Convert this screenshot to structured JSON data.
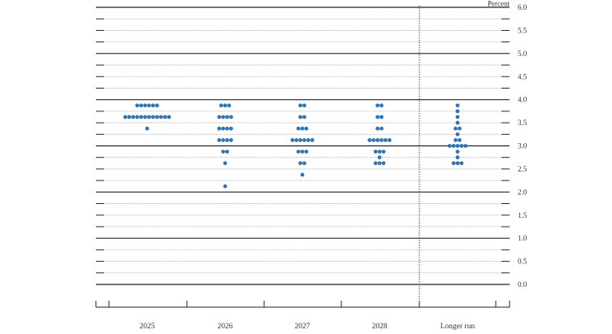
{
  "chart_data": {
    "type": "scatter",
    "title": "",
    "ylabel": "Percent",
    "xlabel": "",
    "ylim": [
      0,
      6
    ],
    "grid": true,
    "y_ticks": [
      "0.0",
      "0.5",
      "1.0",
      "1.5",
      "2.0",
      "2.5",
      "3.0",
      "3.5",
      "4.0",
      "4.5",
      "5.0",
      "5.5",
      "6.0"
    ],
    "dot_color": "#2e75b6",
    "categories": [
      "2025",
      "2026",
      "2027",
      "2028",
      "Longer run"
    ],
    "series": [
      {
        "name": "2025",
        "points": [
          {
            "y": 3.875,
            "count": 6
          },
          {
            "y": 3.625,
            "count": 12
          },
          {
            "y": 3.375,
            "count": 1
          }
        ]
      },
      {
        "name": "2026",
        "points": [
          {
            "y": 3.875,
            "count": 3
          },
          {
            "y": 3.625,
            "count": 4
          },
          {
            "y": 3.375,
            "count": 4
          },
          {
            "y": 3.125,
            "count": 4
          },
          {
            "y": 2.875,
            "count": 2
          },
          {
            "y": 2.625,
            "count": 1
          },
          {
            "y": 2.125,
            "count": 1
          }
        ]
      },
      {
        "name": "2027",
        "points": [
          {
            "y": 3.875,
            "count": 2
          },
          {
            "y": 3.625,
            "count": 2
          },
          {
            "y": 3.375,
            "count": 3
          },
          {
            "y": 3.125,
            "count": 6
          },
          {
            "y": 2.875,
            "count": 3
          },
          {
            "y": 2.625,
            "count": 2
          },
          {
            "y": 2.375,
            "count": 1
          }
        ]
      },
      {
        "name": "2028",
        "points": [
          {
            "y": 3.875,
            "count": 2
          },
          {
            "y": 3.625,
            "count": 2
          },
          {
            "y": 3.375,
            "count": 2
          },
          {
            "y": 3.125,
            "count": 6
          },
          {
            "y": 2.875,
            "count": 3
          },
          {
            "y": 2.75,
            "count": 1
          },
          {
            "y": 2.625,
            "count": 3
          }
        ]
      },
      {
        "name": "Longer run",
        "points": [
          {
            "y": 3.875,
            "count": 1
          },
          {
            "y": 3.75,
            "count": 1
          },
          {
            "y": 3.625,
            "count": 1
          },
          {
            "y": 3.5,
            "count": 1
          },
          {
            "y": 3.375,
            "count": 2
          },
          {
            "y": 3.25,
            "count": 1
          },
          {
            "y": 3.125,
            "count": 2
          },
          {
            "y": 3.0,
            "count": 5
          },
          {
            "y": 2.875,
            "count": 1
          },
          {
            "y": 2.75,
            "count": 1
          },
          {
            "y": 2.625,
            "count": 3
          }
        ]
      }
    ]
  }
}
